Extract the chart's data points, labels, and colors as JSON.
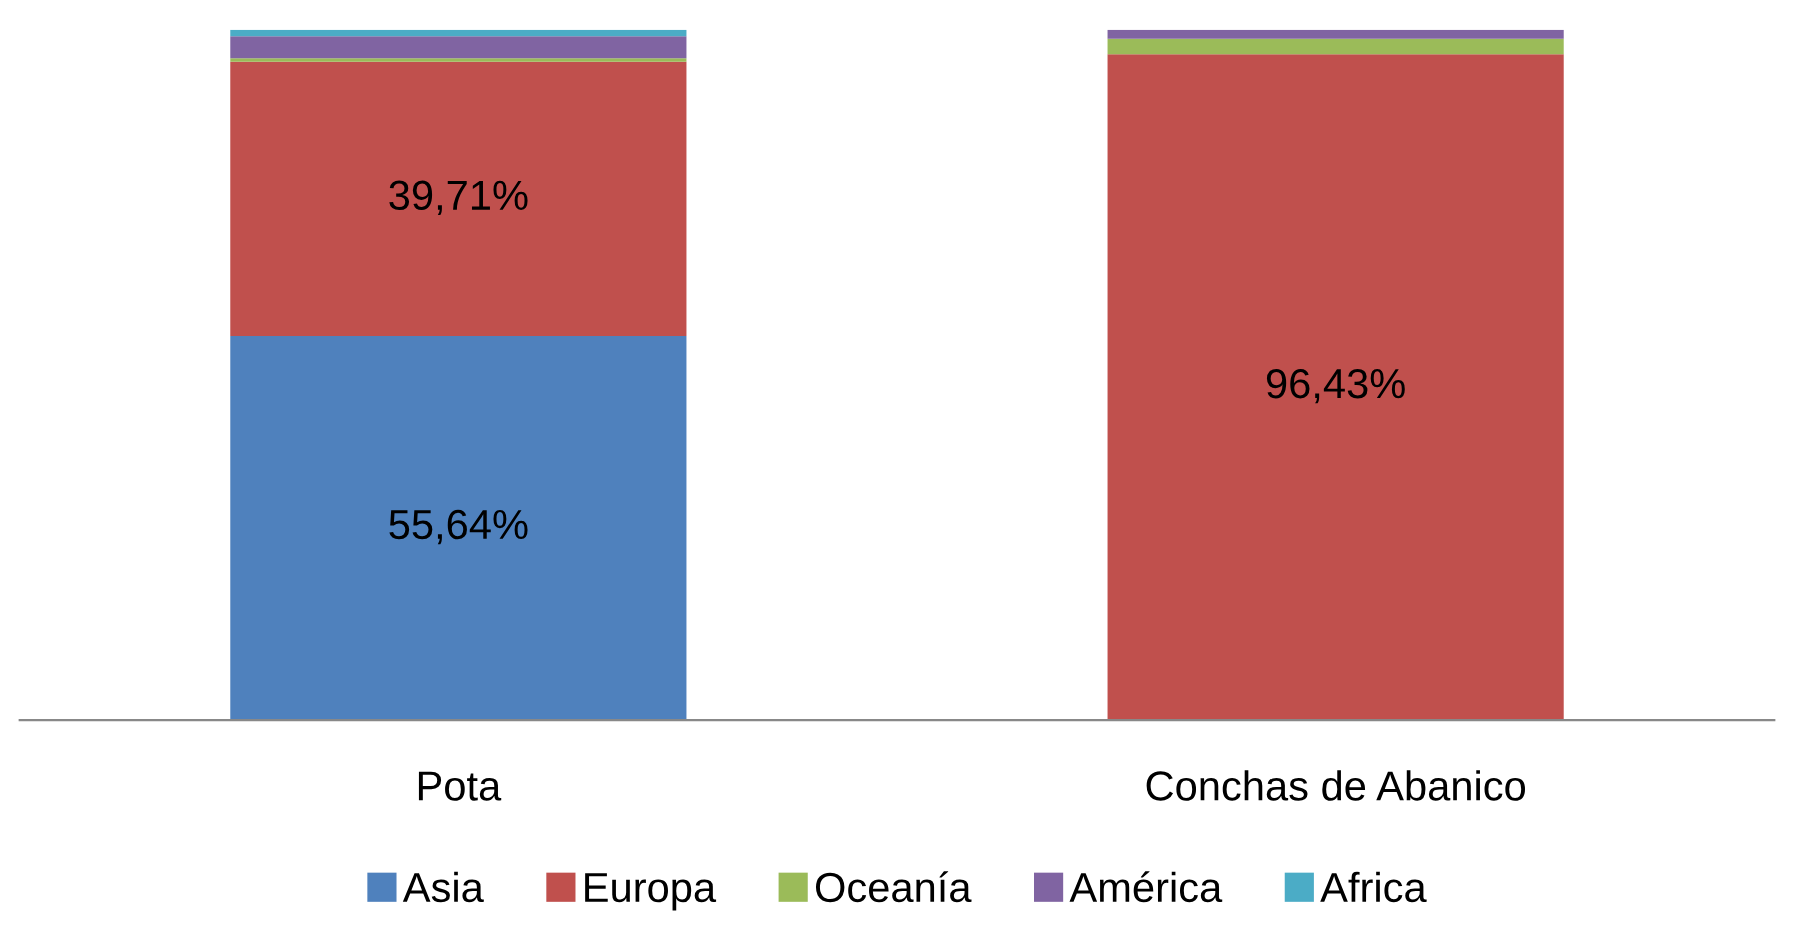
{
  "chart_data": {
    "type": "bar",
    "stacked": true,
    "categories": [
      "Pota",
      "Conchas de Abanico"
    ],
    "ylim": [
      0,
      100
    ],
    "legend": "bottom",
    "grid": false,
    "series": [
      {
        "name": "Asia",
        "color": "#4f81bd",
        "values": [
          55.64,
          0
        ],
        "value_labels": [
          "55,64%",
          null
        ]
      },
      {
        "name": "Europa",
        "color": "#c0504d",
        "values": [
          39.71,
          96.43
        ],
        "value_labels": [
          "39,71%",
          "96,43%"
        ]
      },
      {
        "name": "Oceanía",
        "color": "#9bbb59",
        "values": [
          0.5,
          2.27
        ],
        "value_labels": [
          null,
          null
        ]
      },
      {
        "name": "América",
        "color": "#8064a2",
        "values": [
          3.2,
          1.3
        ],
        "value_labels": [
          null,
          null
        ]
      },
      {
        "name": "Africa",
        "color": "#4bacc6",
        "values": [
          0.95,
          0
        ],
        "value_labels": [
          null,
          null
        ]
      }
    ]
  }
}
